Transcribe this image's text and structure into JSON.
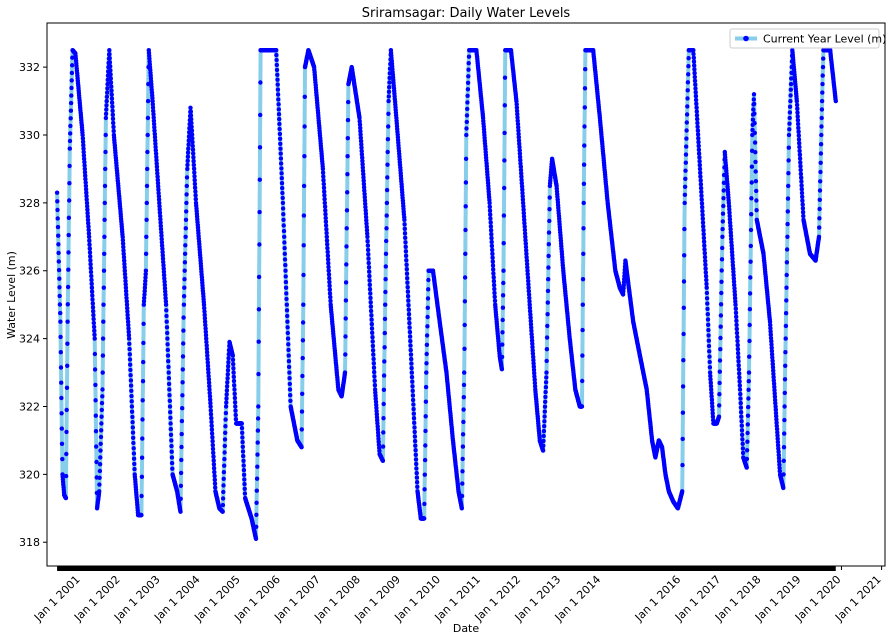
{
  "chart_data": {
    "type": "line",
    "title": "Sriramsagar: Daily Water Levels",
    "xlabel": "Date",
    "ylabel": "Water Level (m)",
    "ylim": [
      317.3,
      333.3
    ],
    "xlim": [
      "2000-03-01",
      "2021-02-01"
    ],
    "grid": false,
    "legend_position": "top-right",
    "y_ticks": [
      318,
      320,
      322,
      324,
      326,
      328,
      330,
      332
    ],
    "x_ticks": [
      "Jan 1 2001",
      "Jan 1 2002",
      "Jan 1 2003",
      "Jan 1 2004",
      "Jan 1 2005",
      "Jan 1 2006",
      "Jan 1 2007",
      "Jan 1 2008",
      "Jan 1 2009",
      "Jan 1 2010",
      "Jan 1 2011",
      "Jan 1 2012",
      "Jan 1 2013",
      "Jan 1 2014",
      "Jan 1 2016",
      "Jan 1 2017",
      "Jan 1 2018",
      "Jan 1 2019",
      "Jan 1 2020",
      "Jan 1 2021"
    ],
    "x_tick_dates": [
      "2001-01-01",
      "2002-01-01",
      "2003-01-01",
      "2004-01-01",
      "2005-01-01",
      "2006-01-01",
      "2007-01-01",
      "2008-01-01",
      "2009-01-01",
      "2010-01-01",
      "2011-01-01",
      "2012-01-01",
      "2013-01-01",
      "2014-01-01",
      "2016-01-01",
      "2017-01-01",
      "2018-01-01",
      "2019-01-01",
      "2020-01-01",
      "2021-01-01"
    ],
    "series": [
      {
        "name": "Current Year Level (m)",
        "line_color": "#87ceeb",
        "marker_color": "#0000ff",
        "points": [
          [
            "2000-06-01",
            328.3
          ],
          [
            "2000-07-01",
            324.5
          ],
          [
            "2000-07-20",
            320.0
          ],
          [
            "2000-08-05",
            319.4
          ],
          [
            "2000-08-20",
            319.3
          ],
          [
            "2000-09-05",
            324.5
          ],
          [
            "2000-09-25",
            329.6
          ],
          [
            "2000-10-20",
            332.5
          ],
          [
            "2000-11-15",
            332.4
          ],
          [
            "2001-01-20",
            330.0
          ],
          [
            "2001-03-20",
            327.0
          ],
          [
            "2001-05-10",
            324.0
          ],
          [
            "2001-06-01",
            319.0
          ],
          [
            "2001-06-20",
            319.5
          ],
          [
            "2001-07-20",
            322.5
          ],
          [
            "2001-08-20",
            330.5
          ],
          [
            "2001-09-20",
            332.5
          ],
          [
            "2001-11-01",
            330.0
          ],
          [
            "2002-01-20",
            327.0
          ],
          [
            "2002-03-20",
            324.0
          ],
          [
            "2002-05-10",
            320.0
          ],
          [
            "2002-06-10",
            318.8
          ],
          [
            "2002-07-10",
            318.8
          ],
          [
            "2002-08-01",
            325.0
          ],
          [
            "2002-08-20",
            326.0
          ],
          [
            "2002-09-15",
            332.5
          ],
          [
            "2002-10-20",
            331.0
          ],
          [
            "2002-12-20",
            328.0
          ],
          [
            "2003-02-20",
            325.0
          ],
          [
            "2003-04-20",
            320.0
          ],
          [
            "2003-06-01",
            319.5
          ],
          [
            "2003-07-01",
            318.9
          ],
          [
            "2003-08-01",
            325.0
          ],
          [
            "2003-09-01",
            329.0
          ],
          [
            "2003-10-01",
            330.8
          ],
          [
            "2003-11-20",
            328.0
          ],
          [
            "2004-02-01",
            325.0
          ],
          [
            "2004-04-01",
            322.0
          ],
          [
            "2004-05-15",
            319.5
          ],
          [
            "2004-06-20",
            319.0
          ],
          [
            "2004-07-20",
            318.9
          ],
          [
            "2004-08-20",
            322.0
          ],
          [
            "2004-09-20",
            323.9
          ],
          [
            "2004-10-20",
            323.5
          ],
          [
            "2004-11-20",
            321.5
          ],
          [
            "2005-01-10",
            321.5
          ],
          [
            "2005-02-10",
            319.3
          ],
          [
            "2005-04-10",
            318.7
          ],
          [
            "2005-05-20",
            318.1
          ],
          [
            "2005-06-10",
            322.0
          ],
          [
            "2005-07-01",
            332.5
          ],
          [
            "2005-09-01",
            332.5
          ],
          [
            "2005-11-20",
            332.5
          ],
          [
            "2006-01-20",
            328.0
          ],
          [
            "2006-04-01",
            322.0
          ],
          [
            "2006-06-01",
            321.0
          ],
          [
            "2006-07-10",
            320.8
          ],
          [
            "2006-07-25",
            325.0
          ],
          [
            "2006-08-10",
            332.0
          ],
          [
            "2006-09-10",
            332.5
          ],
          [
            "2006-11-01",
            332.0
          ],
          [
            "2007-01-20",
            329.0
          ],
          [
            "2007-04-01",
            325.0
          ],
          [
            "2007-06-10",
            322.5
          ],
          [
            "2007-07-10",
            322.3
          ],
          [
            "2007-08-10",
            323.0
          ],
          [
            "2007-09-10",
            331.5
          ],
          [
            "2007-10-10",
            332.0
          ],
          [
            "2007-12-20",
            330.5
          ],
          [
            "2008-03-01",
            327.0
          ],
          [
            "2008-05-10",
            322.5
          ],
          [
            "2008-06-20",
            320.6
          ],
          [
            "2008-07-20",
            320.4
          ],
          [
            "2008-08-10",
            325.0
          ],
          [
            "2008-09-10",
            331.0
          ],
          [
            "2008-10-01",
            332.5
          ],
          [
            "2008-11-20",
            330.5
          ],
          [
            "2009-02-01",
            327.5
          ],
          [
            "2009-04-10",
            323.0
          ],
          [
            "2009-06-01",
            319.5
          ],
          [
            "2009-07-01",
            318.7
          ],
          [
            "2009-08-01",
            318.7
          ],
          [
            "2009-08-20",
            323.0
          ],
          [
            "2009-09-10",
            326.0
          ],
          [
            "2009-10-20",
            326.0
          ],
          [
            "2009-12-20",
            324.5
          ],
          [
            "2010-02-20",
            323.0
          ],
          [
            "2010-04-20",
            321.0
          ],
          [
            "2010-06-10",
            319.5
          ],
          [
            "2010-07-10",
            319.0
          ],
          [
            "2010-08-01",
            323.0
          ],
          [
            "2010-08-20",
            330.0
          ],
          [
            "2010-09-15",
            332.5
          ],
          [
            "2010-11-20",
            332.5
          ],
          [
            "2011-01-20",
            330.5
          ],
          [
            "2011-03-20",
            328.0
          ],
          [
            "2011-05-10",
            325.0
          ],
          [
            "2011-06-20",
            323.5
          ],
          [
            "2011-07-10",
            323.1
          ],
          [
            "2011-07-25",
            326.0
          ],
          [
            "2011-08-10",
            332.5
          ],
          [
            "2011-10-01",
            332.5
          ],
          [
            "2011-11-20",
            331.0
          ],
          [
            "2012-01-20",
            328.0
          ],
          [
            "2012-03-20",
            325.0
          ],
          [
            "2012-05-10",
            322.5
          ],
          [
            "2012-06-20",
            321.0
          ],
          [
            "2012-07-20",
            320.7
          ],
          [
            "2012-08-20",
            323.0
          ],
          [
            "2012-09-20",
            328.5
          ],
          [
            "2012-10-10",
            329.3
          ],
          [
            "2012-11-20",
            328.5
          ],
          [
            "2013-01-20",
            326.0
          ],
          [
            "2013-03-20",
            324.0
          ],
          [
            "2013-05-10",
            322.5
          ],
          [
            "2013-06-20",
            322.0
          ],
          [
            "2013-07-10",
            322.0
          ],
          [
            "2013-07-25",
            328.0
          ],
          [
            "2013-08-10",
            332.5
          ],
          [
            "2013-10-20",
            332.5
          ],
          [
            "2013-12-20",
            330.5
          ],
          [
            "2014-03-01",
            328.0
          ],
          [
            "2014-05-10",
            326.0
          ],
          [
            "2014-06-20",
            325.5
          ],
          [
            "2014-07-20",
            325.3
          ],
          [
            "2014-08-10",
            326.3
          ],
          [
            "2014-09-10",
            325.5
          ],
          [
            "2014-10-20",
            324.5
          ],
          [
            "2014-12-20",
            323.5
          ],
          [
            "2015-02-20",
            322.5
          ],
          [
            "2015-04-10",
            321.0
          ],
          [
            "2015-05-10",
            320.5
          ],
          [
            "2015-06-10",
            321.0
          ],
          [
            "2015-07-10",
            320.8
          ],
          [
            "2015-08-10",
            320.0
          ],
          [
            "2015-09-10",
            319.5
          ],
          [
            "2015-10-20",
            319.2
          ],
          [
            "2015-12-01",
            319.0
          ],
          [
            "2016-01-10",
            319.5
          ],
          [
            "2016-02-01",
            328.0
          ],
          [
            "2016-03-10",
            332.5
          ],
          [
            "2016-04-20",
            332.5
          ],
          [
            "2016-06-20",
            329.0
          ],
          [
            "2016-08-20",
            325.5
          ],
          [
            "2016-09-20",
            323.0
          ],
          [
            "2016-10-20",
            321.5
          ],
          [
            "2016-11-20",
            321.5
          ],
          [
            "2016-12-10",
            321.7
          ],
          [
            "2017-01-10",
            327.0
          ],
          [
            "2017-02-01",
            329.5
          ],
          [
            "2017-03-10",
            328.0
          ],
          [
            "2017-05-10",
            325.0
          ],
          [
            "2017-06-20",
            322.5
          ],
          [
            "2017-07-20",
            320.5
          ],
          [
            "2017-08-20",
            320.2
          ],
          [
            "2017-09-10",
            323.0
          ],
          [
            "2017-10-10",
            330.0
          ],
          [
            "2017-10-25",
            331.2
          ],
          [
            "2017-11-20",
            327.5
          ],
          [
            "2018-01-20",
            326.5
          ],
          [
            "2018-03-20",
            324.5
          ],
          [
            "2018-05-10",
            322.0
          ],
          [
            "2018-06-20",
            320.0
          ],
          [
            "2018-07-20",
            319.6
          ],
          [
            "2018-08-10",
            324.0
          ],
          [
            "2018-09-10",
            330.0
          ],
          [
            "2018-10-10",
            332.5
          ],
          [
            "2018-11-20",
            331.0
          ],
          [
            "2019-01-20",
            327.5
          ],
          [
            "2019-03-20",
            326.5
          ],
          [
            "2019-05-10",
            326.3
          ],
          [
            "2019-06-10",
            327.0
          ],
          [
            "2019-07-01",
            330.0
          ],
          [
            "2019-07-20",
            332.5
          ],
          [
            "2019-09-20",
            332.5
          ],
          [
            "2019-11-10",
            331.0
          ]
        ]
      }
    ]
  }
}
